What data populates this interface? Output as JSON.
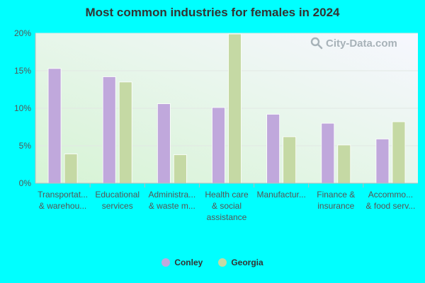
{
  "chart_data": {
    "type": "bar",
    "title": "Most common industries for females in 2024",
    "categories": [
      [
        "Transportat...",
        "& warehou..."
      ],
      [
        "Educational",
        "services"
      ],
      [
        "Administra...",
        "& waste m..."
      ],
      [
        "Health care",
        "& social",
        "assistance"
      ],
      [
        "Manufactur..."
      ],
      [
        "Finance &",
        "insurance"
      ],
      [
        "Accommo...",
        "& food serv..."
      ]
    ],
    "series": [
      {
        "name": "Conley",
        "color": "#c0a8dc",
        "values": [
          15.3,
          14.2,
          10.6,
          10.1,
          9.2,
          8.0,
          5.9
        ]
      },
      {
        "name": "Georgia",
        "color": "#c5d9a4",
        "values": [
          3.9,
          13.5,
          3.8,
          19.9,
          6.2,
          5.1,
          8.2
        ]
      }
    ],
    "yticks": [
      "0%",
      "5%",
      "10%",
      "15%",
      "20%"
    ],
    "ylim": [
      0,
      20
    ],
    "grid": true,
    "legend_position": "bottom"
  },
  "watermark": {
    "text": "City-Data.com",
    "icon": "search-icon"
  }
}
